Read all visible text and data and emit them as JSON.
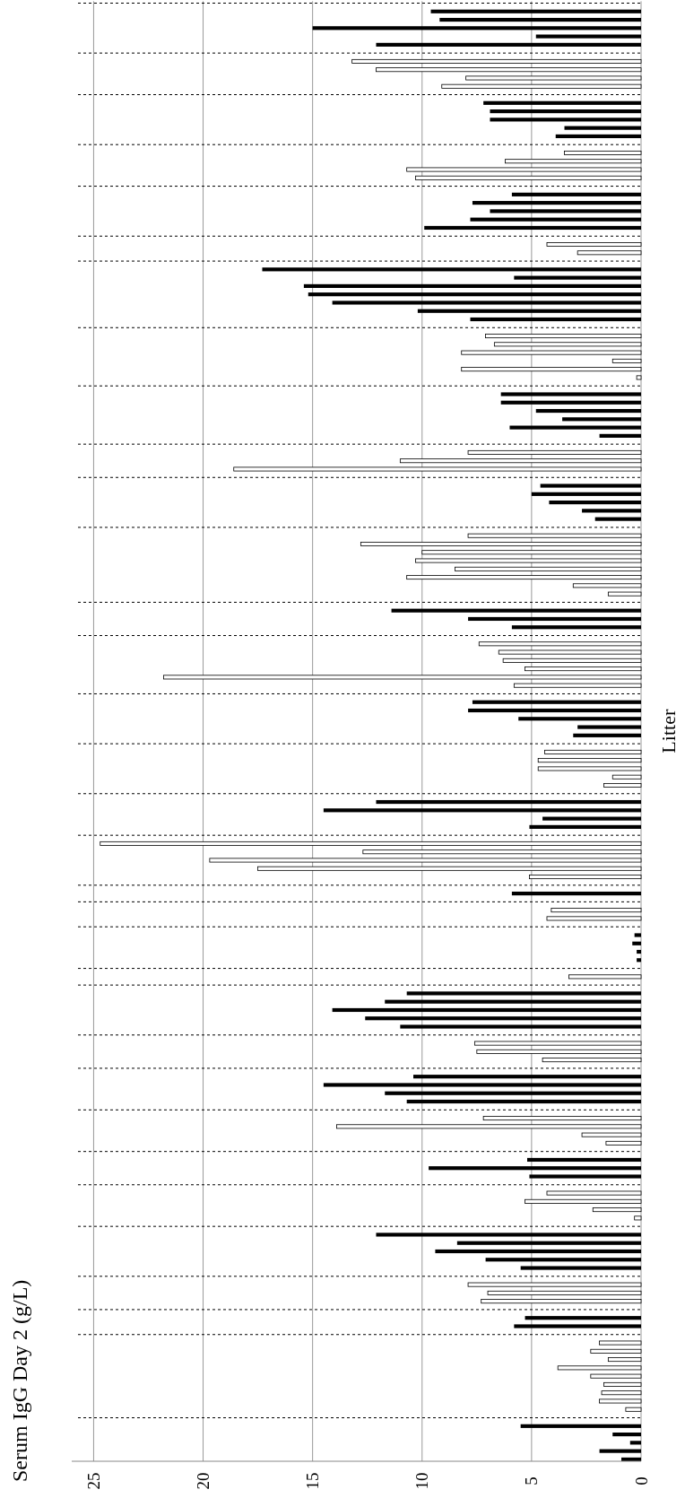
{
  "chart_data": {
    "type": "bar",
    "orientation": "horizontal",
    "stacked": true,
    "title": "Serum IgG Day 2 (g/L)",
    "ylabel": "Litter",
    "categories": [
      null,
      null,
      null,
      null,
      null,
      null,
      null,
      null,
      null,
      null,
      null,
      null,
      null,
      null,
      null,
      null,
      null,
      null,
      null,
      null,
      null,
      null,
      null,
      null,
      null,
      null,
      null,
      null,
      null,
      null,
      null,
      null,
      null,
      null,
      null,
      null,
      null,
      null,
      null,
      null,
      null,
      null,
      null,
      null,
      null,
      null,
      null,
      null,
      null,
      null,
      null,
      null,
      null,
      null,
      null,
      null,
      null,
      null,
      null,
      null,
      null,
      null,
      null,
      null,
      null,
      null,
      null,
      null,
      null,
      null,
      null,
      null,
      null,
      null,
      null,
      null,
      null,
      null,
      null,
      null,
      null,
      null,
      null,
      null,
      null,
      null,
      null,
      null,
      null,
      null,
      null,
      null,
      null,
      null,
      null,
      null,
      null,
      null,
      null,
      null,
      null,
      null,
      null,
      null,
      null,
      null,
      null,
      null,
      null,
      null,
      null,
      null,
      null,
      null,
      null,
      null,
      null,
      null,
      null,
      null,
      null,
      null,
      null,
      null,
      null,
      null,
      null,
      null,
      null,
      null,
      null,
      null,
      null,
      null,
      null,
      null,
      null,
      null,
      null,
      null,
      null,
      null,
      null,
      null,
      null,
      null,
      null,
      null,
      null,
      null,
      null,
      null,
      null,
      null,
      null,
      null,
      null,
      null,
      null,
      null,
      null,
      null,
      null,
      null,
      null,
      null,
      null,
      null,
      null,
      null,
      null,
      null,
      null,
      null,
      null,
      null
    ],
    "series": [
      {
        "color": "#000000",
        "values": [
          null,
          9.6,
          9.2,
          15.0,
          4.8,
          12.1,
          null,
          null,
          null,
          null,
          null,
          null,
          7.2,
          6.9,
          6.9,
          3.5,
          3.9,
          null,
          null,
          null,
          null,
          null,
          null,
          5.9,
          7.7,
          6.9,
          7.8,
          9.9,
          null,
          null,
          null,
          null,
          17.3,
          5.8,
          15.4,
          15.2,
          14.1,
          10.2,
          7.8,
          null,
          null,
          null,
          null,
          null,
          null,
          null,
          null,
          6.4,
          6.4,
          4.8,
          3.6,
          6.0,
          1.9,
          null,
          null,
          null,
          null,
          null,
          4.6,
          5.0,
          4.2,
          2.7,
          2.1,
          null,
          null,
          null,
          null,
          null,
          null,
          null,
          null,
          null,
          null,
          11.4,
          7.9,
          5.9,
          null,
          null,
          null,
          null,
          null,
          null,
          null,
          null,
          7.7,
          7.9,
          5.6,
          2.9,
          3.1,
          null,
          null,
          null,
          null,
          null,
          null,
          null,
          12.1,
          14.5,
          4.5,
          5.1,
          null,
          null,
          null,
          null,
          null,
          null,
          null,
          5.9,
          null,
          null,
          null,
          null,
          0.3,
          0.4,
          0.2,
          0.2,
          null,
          null,
          null,
          10.7,
          11.7,
          14.1,
          12.6,
          11.0,
          null,
          null,
          null,
          null,
          null,
          10.4,
          14.5,
          11.7,
          10.7,
          null,
          null,
          null,
          null,
          null,
          null,
          5.2,
          9.7,
          5.1,
          null,
          null,
          null,
          null,
          null,
          null,
          12.1,
          8.4,
          9.4,
          7.1,
          5.5,
          null,
          null,
          null,
          null,
          null,
          5.3,
          5.8,
          null,
          null,
          null,
          null,
          null,
          null,
          null,
          null,
          null,
          null,
          null,
          5.5,
          1.3,
          0.5,
          1.9,
          0.9
        ]
      },
      {
        "color": "#ffffff",
        "values": [
          null,
          null,
          null,
          null,
          null,
          null,
          null,
          13.2,
          12.1,
          8.0,
          9.1,
          null,
          null,
          null,
          null,
          null,
          null,
          null,
          3.5,
          6.2,
          10.7,
          10.3,
          null,
          null,
          null,
          null,
          null,
          null,
          null,
          4.3,
          2.9,
          null,
          null,
          null,
          null,
          null,
          null,
          null,
          null,
          null,
          7.1,
          6.7,
          8.2,
          1.3,
          8.2,
          0.2,
          null,
          null,
          null,
          null,
          null,
          null,
          null,
          null,
          7.9,
          11.0,
          18.6,
          null,
          null,
          null,
          null,
          null,
          null,
          null,
          7.9,
          12.8,
          10.0,
          10.3,
          8.5,
          10.7,
          3.1,
          1.5,
          null,
          null,
          null,
          null,
          null,
          7.4,
          6.5,
          6.3,
          5.3,
          21.8,
          5.8,
          null,
          null,
          null,
          null,
          null,
          null,
          null,
          4.4,
          4.7,
          4.7,
          1.3,
          1.7,
          null,
          null,
          null,
          null,
          null,
          null,
          24.7,
          12.7,
          19.7,
          17.5,
          5.1,
          null,
          null,
          null,
          4.1,
          4.3,
          null,
          null,
          null,
          null,
          null,
          null,
          3.3,
          null,
          null,
          null,
          null,
          null,
          null,
          null,
          7.6,
          7.5,
          4.5,
          null,
          null,
          null,
          null,
          null,
          null,
          7.2,
          13.9,
          2.7,
          1.6,
          null,
          null,
          null,
          null,
          null,
          4.3,
          5.3,
          2.2,
          0.3,
          null,
          null,
          null,
          null,
          null,
          null,
          null,
          7.9,
          7.0,
          7.3,
          null,
          null,
          null,
          null,
          1.9,
          2.3,
          1.5,
          3.8,
          2.3,
          1.7,
          1.8,
          1.9,
          0.7,
          null,
          null,
          null,
          null,
          null,
          null
        ]
      }
    ],
    "xlim": [
      26,
      0
    ],
    "xticks": [
      0,
      5,
      10,
      15,
      20,
      25
    ],
    "grid": "x"
  }
}
